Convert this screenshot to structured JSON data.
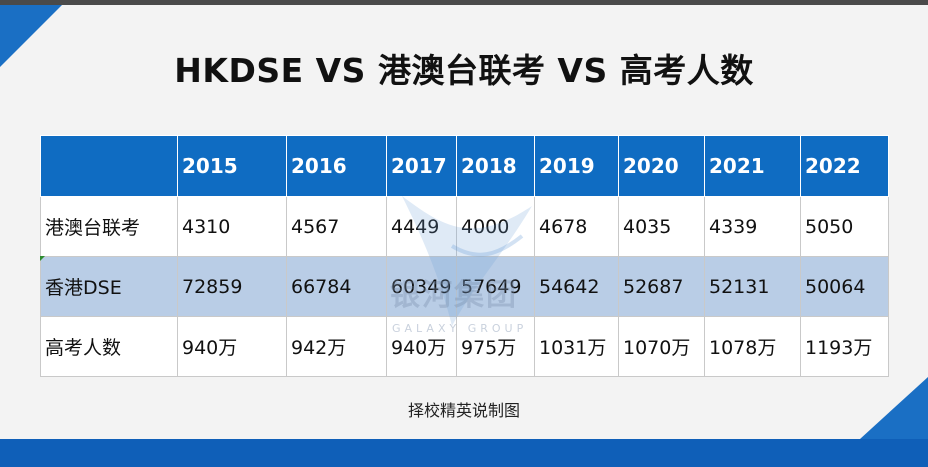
{
  "title": "HKDSE VS 港澳台联考 VS 高考人数",
  "table": {
    "headers": [
      "",
      "2015",
      "2016",
      "2017",
      "2018",
      "2019",
      "2020",
      "2021",
      "2022"
    ],
    "rows": [
      {
        "label": "港澳台联考",
        "values": [
          "4310",
          "4567",
          "4449",
          "4000",
          "4678",
          "4035",
          "4339",
          "5050"
        ]
      },
      {
        "label": "香港DSE",
        "values": [
          "72859",
          "66784",
          "60349",
          "57649",
          "54642",
          "52687",
          "52131",
          "50064"
        ]
      },
      {
        "label": "高考人数",
        "values": [
          "940万",
          "942万",
          "940万",
          "975万",
          "1031万",
          "1070万",
          "1078万",
          "1193万"
        ]
      }
    ]
  },
  "watermark": {
    "name": "银河集团",
    "sub": "GALAXY GROUP"
  },
  "caption": "择校精英说制图",
  "colors": {
    "header": "#0f6cc2",
    "accent": "#1a6fc4",
    "row_highlight": "#b9cde6"
  }
}
